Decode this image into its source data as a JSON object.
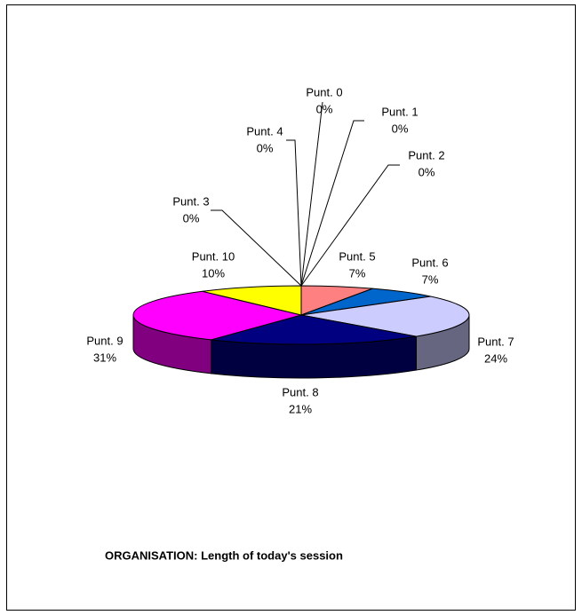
{
  "chart_data": {
    "type": "pie3d",
    "title": "ORGANISATION: Length of today's session",
    "categories": [
      "Punt. 0",
      "Punt. 1",
      "Punt. 2",
      "Punt. 3",
      "Punt. 4",
      "Punt. 5",
      "Punt. 6",
      "Punt. 7",
      "Punt. 8",
      "Punt. 9",
      "Punt. 10"
    ],
    "values": [
      0,
      0,
      0,
      0,
      0,
      7,
      7,
      24,
      21,
      31,
      10
    ],
    "value_labels": [
      "0%",
      "0%",
      "0%",
      "0%",
      "0%",
      "7%",
      "7%",
      "24%",
      "21%",
      "31%",
      "10%"
    ],
    "colors": [
      "#9999ff",
      "#993366",
      "#ffffcc",
      "#ccffff",
      "#660066",
      "#ff8080",
      "#0066cc",
      "#ccccff",
      "#000080",
      "#ff00ff",
      "#ffff00"
    ]
  }
}
